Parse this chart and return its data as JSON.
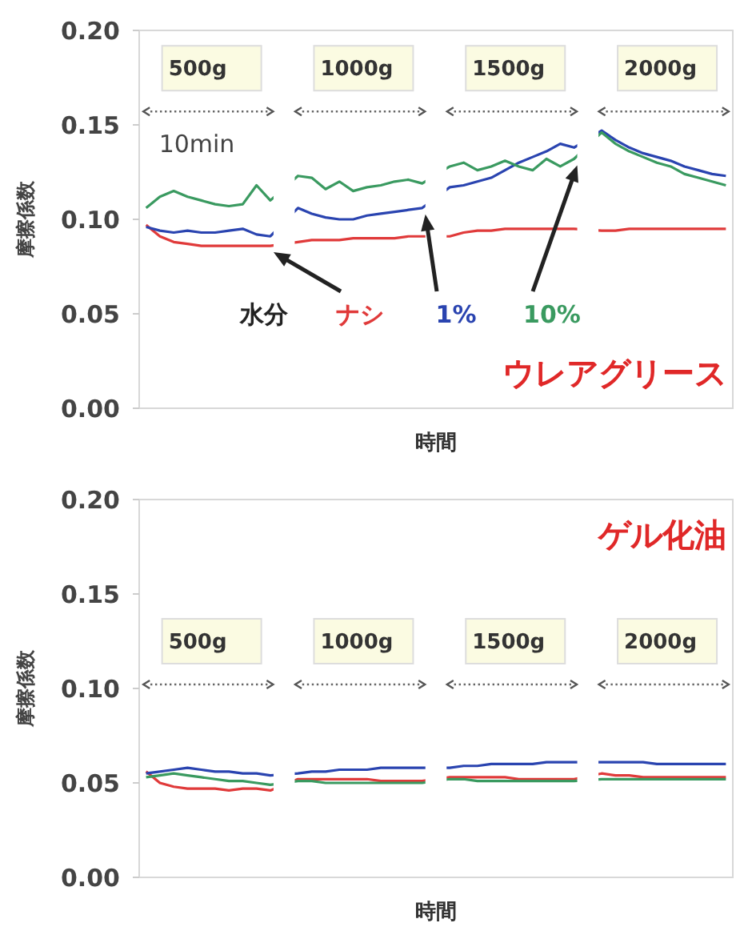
{
  "chart_data": [
    {
      "type": "line",
      "title": "ウレアグリース",
      "xlabel": "時間",
      "ylabel": "摩擦係数",
      "legend_title": "水分",
      "legend": "bottom",
      "tick_labels": "y",
      "ylim": [
        0,
        0.2
      ],
      "yticks": [
        {
          "value": 0,
          "label": "0.00"
        },
        {
          "value": 0.05,
          "label": "0.05"
        },
        {
          "value": 0.1,
          "label": "0.10"
        },
        {
          "value": 0.15,
          "label": "0.15"
        },
        {
          "value": 0.2,
          "label": "0.20"
        }
      ],
      "categories": [
        null,
        null,
        null,
        null,
        null,
        null,
        null,
        null,
        null,
        null,
        null,
        null,
        null,
        null,
        null,
        null,
        null,
        null,
        null,
        null,
        null,
        null,
        null,
        null,
        null,
        null,
        null,
        null,
        null,
        null,
        null,
        null,
        null,
        null,
        null,
        null,
        null,
        null,
        null,
        null,
        null,
        null,
        null
      ],
      "annotations": [
        "500g",
        "1000g",
        "1500g",
        "2000g",
        "10min"
      ],
      "series": [
        {
          "name": "ナシ",
          "color": "#e03a3a",
          "values": [
            0.097,
            0.091,
            0.088,
            0.087,
            0.086,
            0.086,
            0.086,
            0.086,
            0.086,
            0.086,
            null,
            0.088,
            0.089,
            0.089,
            0.089,
            0.09,
            0.09,
            0.09,
            0.09,
            0.091,
            0.091,
            null,
            0.091,
            0.093,
            0.094,
            0.094,
            0.095,
            0.095,
            0.095,
            0.095,
            0.095,
            0.095,
            null,
            0.094,
            0.094,
            0.095,
            0.095,
            0.095,
            0.095,
            0.095,
            0.095,
            0.095,
            0.095
          ]
        },
        {
          "name": "1%",
          "color": "#2a44b0",
          "values": [
            0.096,
            0.094,
            0.093,
            0.094,
            0.093,
            0.093,
            0.094,
            0.095,
            0.092,
            0.091,
            null,
            0.106,
            0.103,
            0.101,
            0.1,
            0.1,
            0.102,
            0.103,
            0.104,
            0.105,
            0.106,
            null,
            0.117,
            0.118,
            0.12,
            0.122,
            0.126,
            0.13,
            0.133,
            0.136,
            0.14,
            0.138,
            null,
            0.147,
            0.142,
            0.138,
            0.135,
            0.133,
            0.131,
            0.128,
            0.126,
            0.124,
            0.123
          ]
        },
        {
          "name": "10%",
          "color": "#3a9a60",
          "values": [
            0.106,
            0.112,
            0.115,
            0.112,
            0.11,
            0.108,
            0.107,
            0.108,
            0.118,
            0.11,
            null,
            0.123,
            0.122,
            0.116,
            0.12,
            0.115,
            0.117,
            0.118,
            0.12,
            0.121,
            0.119,
            null,
            0.128,
            0.13,
            0.126,
            0.128,
            0.131,
            0.128,
            0.126,
            0.132,
            0.128,
            0.132,
            null,
            0.146,
            0.14,
            0.136,
            0.133,
            0.13,
            0.128,
            0.124,
            0.122,
            0.12,
            0.118
          ]
        }
      ]
    },
    {
      "type": "line",
      "title": "ゲル化油",
      "xlabel": "時間",
      "ylabel": "摩擦係数",
      "tick_labels": "y",
      "ylim": [
        0,
        0.2
      ],
      "yticks": [
        {
          "value": 0,
          "label": "0.00"
        },
        {
          "value": 0.05,
          "label": "0.05"
        },
        {
          "value": 0.1,
          "label": "0.10"
        },
        {
          "value": 0.15,
          "label": "0.15"
        },
        {
          "value": 0.2,
          "label": "0.20"
        }
      ],
      "categories": [
        null,
        null,
        null,
        null,
        null,
        null,
        null,
        null,
        null,
        null,
        null,
        null,
        null,
        null,
        null,
        null,
        null,
        null,
        null,
        null,
        null,
        null,
        null,
        null,
        null,
        null,
        null,
        null,
        null,
        null,
        null,
        null,
        null,
        null,
        null,
        null,
        null,
        null,
        null,
        null,
        null,
        null,
        null
      ],
      "annotations": [
        "500g",
        "1000g",
        "1500g",
        "2000g"
      ],
      "series": [
        {
          "color": "#e03a3a",
          "values": [
            0.056,
            0.05,
            0.048,
            0.047,
            0.047,
            0.047,
            0.046,
            0.047,
            0.047,
            0.046,
            null,
            0.052,
            0.052,
            0.052,
            0.052,
            0.052,
            0.052,
            0.051,
            0.051,
            0.051,
            0.051,
            null,
            0.053,
            0.053,
            0.053,
            0.053,
            0.053,
            0.052,
            0.052,
            0.052,
            0.052,
            0.052,
            null,
            0.055,
            0.054,
            0.054,
            0.053,
            0.053,
            0.053,
            0.053,
            0.053,
            0.053,
            0.053
          ]
        },
        {
          "color": "#2a44b0",
          "values": [
            0.055,
            0.056,
            0.057,
            0.058,
            0.057,
            0.056,
            0.056,
            0.055,
            0.055,
            0.054,
            null,
            0.055,
            0.056,
            0.056,
            0.057,
            0.057,
            0.057,
            0.058,
            0.058,
            0.058,
            0.058,
            null,
            0.058,
            0.059,
            0.059,
            0.06,
            0.06,
            0.06,
            0.06,
            0.061,
            0.061,
            0.061,
            null,
            0.061,
            0.061,
            0.061,
            0.061,
            0.06,
            0.06,
            0.06,
            0.06,
            0.06,
            0.06
          ]
        },
        {
          "color": "#3a9a60",
          "values": [
            0.053,
            0.054,
            0.055,
            0.054,
            0.053,
            0.052,
            0.051,
            0.051,
            0.05,
            0.049,
            null,
            0.051,
            0.051,
            0.05,
            0.05,
            0.05,
            0.05,
            0.05,
            0.05,
            0.05,
            0.05,
            null,
            0.052,
            0.052,
            0.051,
            0.051,
            0.051,
            0.051,
            0.051,
            0.051,
            0.051,
            0.051,
            null,
            0.052,
            0.052,
            0.052,
            0.052,
            0.052,
            0.052,
            0.052,
            0.052,
            0.052,
            0.052
          ]
        }
      ]
    }
  ]
}
